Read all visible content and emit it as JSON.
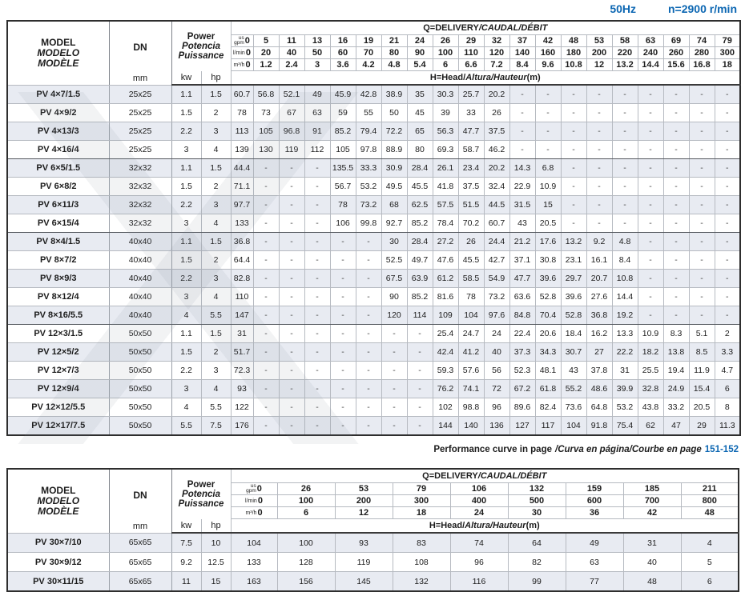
{
  "colors": {
    "accent_blue": "#0b66b2",
    "row_shade": "#e8ebf2"
  },
  "header": {
    "frequency": "50Hz",
    "speed": "n=2900 r/min"
  },
  "labels": {
    "model_lines": [
      "MODEL",
      "MODELO",
      "MODÈLE"
    ],
    "dn": "DN",
    "mm": "mm",
    "power_lines": [
      "Power",
      "Potencia",
      "Puissance"
    ],
    "kw": "kw",
    "hp": "hp",
    "q_en": "Q=DELIVERY",
    "q_intl": "/CAUDAL/DÉBIT",
    "h_en": "H=Head/",
    "h_intl": "Altura/Hauteur",
    "h_unit": "(m)",
    "unit_us": "us",
    "unit_gpm": "gpm",
    "unit_lmin": "l/min",
    "unit_m3h": "m³/h"
  },
  "note": {
    "text_en": "Performance curve in page",
    "text_intl": "/Curva en página/Courbe en page",
    "pages": "151-152"
  },
  "table1": {
    "flows": {
      "gpm": [
        "0",
        "5",
        "11",
        "13",
        "16",
        "19",
        "21",
        "24",
        "26",
        "29",
        "32",
        "37",
        "42",
        "48",
        "53",
        "58",
        "63",
        "69",
        "74",
        "79"
      ],
      "lmin": [
        "0",
        "20",
        "40",
        "50",
        "60",
        "70",
        "80",
        "90",
        "100",
        "110",
        "120",
        "140",
        "160",
        "180",
        "200",
        "220",
        "240",
        "260",
        "280",
        "300"
      ],
      "m3h": [
        "0",
        "1.2",
        "2.4",
        "3",
        "3.6",
        "4.2",
        "4.8",
        "5.4",
        "6",
        "6.6",
        "7.2",
        "8.4",
        "9.6",
        "10.8",
        "12",
        "13.2",
        "14.4",
        "15.6",
        "16.8",
        "18"
      ]
    },
    "group_breaks": [
      3,
      7,
      12
    ],
    "rows": [
      {
        "model": "PV 4×7/1.5",
        "dn": "25x25",
        "kw": "1.1",
        "hp": "1.5",
        "heads": [
          "60.7",
          "56.8",
          "52.1",
          "49",
          "45.9",
          "42.8",
          "38.9",
          "35",
          "30.3",
          "25.7",
          "20.2",
          "-",
          "-",
          "-",
          "-",
          "-",
          "-",
          "-",
          "-",
          "-"
        ]
      },
      {
        "model": "PV 4×9/2",
        "dn": "25x25",
        "kw": "1.5",
        "hp": "2",
        "heads": [
          "78",
          "73",
          "67",
          "63",
          "59",
          "55",
          "50",
          "45",
          "39",
          "33",
          "26",
          "-",
          "-",
          "-",
          "-",
          "-",
          "-",
          "-",
          "-",
          "-"
        ]
      },
      {
        "model": "PV 4×13/3",
        "dn": "25x25",
        "kw": "2.2",
        "hp": "3",
        "heads": [
          "113",
          "105",
          "96.8",
          "91",
          "85.2",
          "79.4",
          "72.2",
          "65",
          "56.3",
          "47.7",
          "37.5",
          "-",
          "-",
          "-",
          "-",
          "-",
          "-",
          "-",
          "-",
          "-"
        ]
      },
      {
        "model": "PV 4×16/4",
        "dn": "25x25",
        "kw": "3",
        "hp": "4",
        "heads": [
          "139",
          "130",
          "119",
          "112",
          "105",
          "97.8",
          "88.9",
          "80",
          "69.3",
          "58.7",
          "46.2",
          "-",
          "-",
          "-",
          "-",
          "-",
          "-",
          "-",
          "-",
          "-"
        ]
      },
      {
        "model": "PV 6×5/1.5",
        "dn": "32x32",
        "kw": "1.1",
        "hp": "1.5",
        "heads": [
          "44.4",
          "-",
          "-",
          "-",
          "135.5",
          "33.3",
          "30.9",
          "28.4",
          "26.1",
          "23.4",
          "20.2",
          "14.3",
          "6.8",
          "-",
          "-",
          "-",
          "-",
          "-",
          "-",
          "-"
        ]
      },
      {
        "model": "PV 6×8/2",
        "dn": "32x32",
        "kw": "1.5",
        "hp": "2",
        "heads": [
          "71.1",
          "-",
          "-",
          "-",
          "56.7",
          "53.2",
          "49.5",
          "45.5",
          "41.8",
          "37.5",
          "32.4",
          "22.9",
          "10.9",
          "-",
          "-",
          "-",
          "-",
          "-",
          "-",
          "-"
        ]
      },
      {
        "model": "PV 6×11/3",
        "dn": "32x32",
        "kw": "2.2",
        "hp": "3",
        "heads": [
          "97.7",
          "-",
          "-",
          "-",
          "78",
          "73.2",
          "68",
          "62.5",
          "57.5",
          "51.5",
          "44.5",
          "31.5",
          "15",
          "-",
          "-",
          "-",
          "-",
          "-",
          "-",
          "-"
        ]
      },
      {
        "model": "PV 6×15/4",
        "dn": "32x32",
        "kw": "3",
        "hp": "4",
        "heads": [
          "133",
          "-",
          "-",
          "-",
          "106",
          "99.8",
          "92.7",
          "85.2",
          "78.4",
          "70.2",
          "60.7",
          "43",
          "20.5",
          "-",
          "-",
          "-",
          "-",
          "-",
          "-",
          "-"
        ]
      },
      {
        "model": "PV 8×4/1.5",
        "dn": "40x40",
        "kw": "1.1",
        "hp": "1.5",
        "heads": [
          "36.8",
          "-",
          "-",
          "-",
          "-",
          "-",
          "30",
          "28.4",
          "27.2",
          "26",
          "24.4",
          "21.2",
          "17.6",
          "13.2",
          "9.2",
          "4.8",
          "-",
          "-",
          "-",
          "-"
        ]
      },
      {
        "model": "PV 8×7/2",
        "dn": "40x40",
        "kw": "1.5",
        "hp": "2",
        "heads": [
          "64.4",
          "-",
          "-",
          "-",
          "-",
          "-",
          "52.5",
          "49.7",
          "47.6",
          "45.5",
          "42.7",
          "37.1",
          "30.8",
          "23.1",
          "16.1",
          "8.4",
          "-",
          "-",
          "-",
          "-"
        ]
      },
      {
        "model": "PV 8×9/3",
        "dn": "40x40",
        "kw": "2.2",
        "hp": "3",
        "heads": [
          "82.8",
          "-",
          "-",
          "-",
          "-",
          "-",
          "67.5",
          "63.9",
          "61.2",
          "58.5",
          "54.9",
          "47.7",
          "39.6",
          "29.7",
          "20.7",
          "10.8",
          "-",
          "-",
          "-",
          "-"
        ]
      },
      {
        "model": "PV 8×12/4",
        "dn": "40x40",
        "kw": "3",
        "hp": "4",
        "heads": [
          "110",
          "-",
          "-",
          "-",
          "-",
          "-",
          "90",
          "85.2",
          "81.6",
          "78",
          "73.2",
          "63.6",
          "52.8",
          "39.6",
          "27.6",
          "14.4",
          "-",
          "-",
          "-",
          "-"
        ]
      },
      {
        "model": "PV 8×16/5.5",
        "dn": "40x40",
        "kw": "4",
        "hp": "5.5",
        "heads": [
          "147",
          "-",
          "-",
          "-",
          "-",
          "-",
          "120",
          "114",
          "109",
          "104",
          "97.6",
          "84.8",
          "70.4",
          "52.8",
          "36.8",
          "19.2",
          "-",
          "-",
          "-",
          "-"
        ]
      },
      {
        "model": "PV 12×3/1.5",
        "dn": "50x50",
        "kw": "1.1",
        "hp": "1.5",
        "heads": [
          "31",
          "-",
          "-",
          "-",
          "-",
          "-",
          "-",
          "-",
          "25.4",
          "24.7",
          "24",
          "22.4",
          "20.6",
          "18.4",
          "16.2",
          "13.3",
          "10.9",
          "8.3",
          "5.1",
          "2"
        ]
      },
      {
        "model": "PV 12×5/2",
        "dn": "50x50",
        "kw": "1.5",
        "hp": "2",
        "heads": [
          "51.7",
          "-",
          "-",
          "-",
          "-",
          "-",
          "-",
          "-",
          "42.4",
          "41.2",
          "40",
          "37.3",
          "34.3",
          "30.7",
          "27",
          "22.2",
          "18.2",
          "13.8",
          "8.5",
          "3.3"
        ]
      },
      {
        "model": "PV 12×7/3",
        "dn": "50x50",
        "kw": "2.2",
        "hp": "3",
        "heads": [
          "72.3",
          "-",
          "-",
          "-",
          "-",
          "-",
          "-",
          "-",
          "59.3",
          "57.6",
          "56",
          "52.3",
          "48.1",
          "43",
          "37.8",
          "31",
          "25.5",
          "19.4",
          "11.9",
          "4.7"
        ]
      },
      {
        "model": "PV 12×9/4",
        "dn": "50x50",
        "kw": "3",
        "hp": "4",
        "heads": [
          "93",
          "-",
          "-",
          "-",
          "-",
          "-",
          "-",
          "-",
          "76.2",
          "74.1",
          "72",
          "67.2",
          "61.8",
          "55.2",
          "48.6",
          "39.9",
          "32.8",
          "24.9",
          "15.4",
          "6"
        ]
      },
      {
        "model": "PV 12×12/5.5",
        "dn": "50x50",
        "kw": "4",
        "hp": "5.5",
        "heads": [
          "122",
          "-",
          "-",
          "-",
          "-",
          "-",
          "-",
          "-",
          "102",
          "98.8",
          "96",
          "89.6",
          "82.4",
          "73.6",
          "64.8",
          "53.2",
          "43.8",
          "33.2",
          "20.5",
          "8"
        ]
      },
      {
        "model": "PV 12×17/7.5",
        "dn": "50x50",
        "kw": "5.5",
        "hp": "7.5",
        "heads": [
          "176",
          "-",
          "-",
          "-",
          "-",
          "-",
          "-",
          "-",
          "144",
          "140",
          "136",
          "127",
          "117",
          "104",
          "91.8",
          "75.4",
          "62",
          "47",
          "29",
          "11.3"
        ]
      }
    ]
  },
  "table2": {
    "flows": {
      "gpm": [
        "0",
        "26",
        "53",
        "79",
        "106",
        "132",
        "159",
        "185",
        "211"
      ],
      "lmin": [
        "0",
        "100",
        "200",
        "300",
        "400",
        "500",
        "600",
        "700",
        "800"
      ],
      "m3h": [
        "0",
        "6",
        "12",
        "18",
        "24",
        "30",
        "36",
        "42",
        "48"
      ]
    },
    "group_breaks": [],
    "rows": [
      {
        "model": "PV 30×7/10",
        "dn": "65x65",
        "kw": "7.5",
        "hp": "10",
        "heads": [
          "104",
          "100",
          "93",
          "83",
          "74",
          "64",
          "49",
          "31",
          "4"
        ]
      },
      {
        "model": "PV 30×9/12",
        "dn": "65x65",
        "kw": "9.2",
        "hp": "12.5",
        "heads": [
          "133",
          "128",
          "119",
          "108",
          "96",
          "82",
          "63",
          "40",
          "5"
        ]
      },
      {
        "model": "PV 30×11/15",
        "dn": "65x65",
        "kw": "11",
        "hp": "15",
        "heads": [
          "163",
          "156",
          "145",
          "132",
          "116",
          "99",
          "77",
          "48",
          "6"
        ]
      }
    ]
  }
}
